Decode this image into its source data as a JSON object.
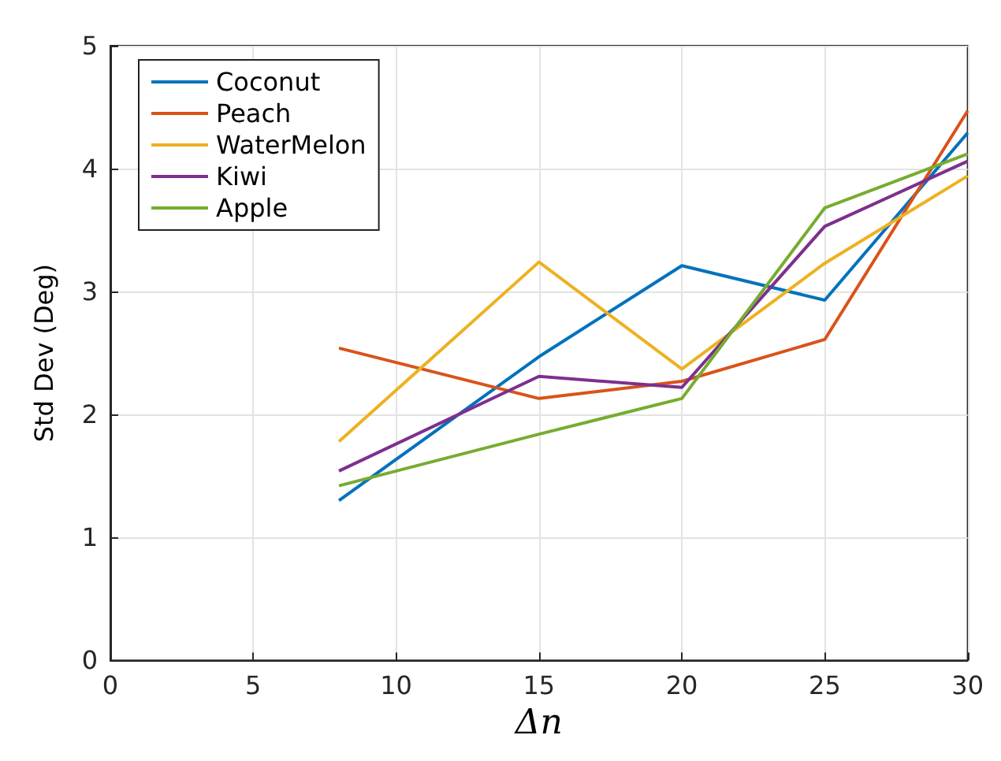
{
  "chart_data": {
    "type": "line",
    "xlabel": "Δn",
    "ylabel": "Std Dev (Deg)",
    "x": [
      8,
      15,
      20,
      25,
      30
    ],
    "series": [
      {
        "name": "Coconut",
        "color": "#0072bd",
        "values": [
          1.3,
          2.47,
          3.21,
          2.93,
          4.29
        ]
      },
      {
        "name": "Peach",
        "color": "#d95319",
        "values": [
          2.54,
          2.13,
          2.27,
          2.61,
          4.47
        ]
      },
      {
        "name": "WaterMelon",
        "color": "#edb120",
        "values": [
          1.78,
          3.24,
          2.37,
          3.23,
          3.94
        ]
      },
      {
        "name": "Kiwi",
        "color": "#7e2f8e",
        "values": [
          1.54,
          2.31,
          2.22,
          3.53,
          4.06
        ]
      },
      {
        "name": "Apple",
        "color": "#77ac30",
        "values": [
          1.42,
          1.84,
          2.13,
          3.68,
          4.12
        ]
      }
    ],
    "xlim": [
      0,
      30
    ],
    "xticks": [
      0,
      5,
      10,
      15,
      20,
      25,
      30
    ],
    "ylim": [
      0,
      5
    ],
    "yticks": [
      0,
      1,
      2,
      3,
      4,
      5
    ],
    "grid": true,
    "legend": "top left",
    "marker": "none",
    "line_style": "solid"
  }
}
